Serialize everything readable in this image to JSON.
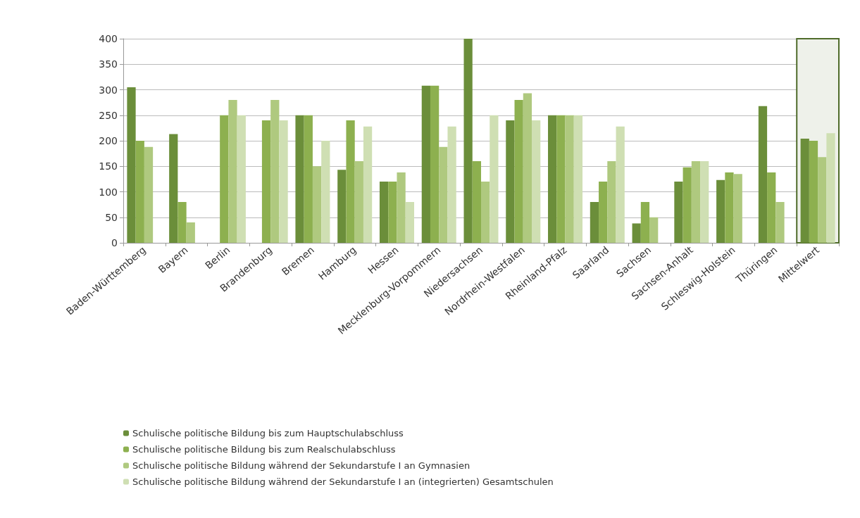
{
  "chart_data": {
    "type": "bar",
    "categories": [
      "Baden-Württemberg",
      "Bayern",
      "Berlin",
      "Brandenburg",
      "Bremen",
      "Hamburg",
      "Hessen",
      "Mecklenburg-Vorpommern",
      "Niedersachsen",
      "Nordrhein-Westfalen",
      "Rheinland-Pfalz",
      "Saarland",
      "Sachsen",
      "Sachsen-Anhalt",
      "Schleswig-Holstein",
      "Thüringen",
      "Mittelwert"
    ],
    "series": [
      {
        "name": "Schulische politische Bildung bis zum Hauptschulabschluss",
        "color": "#6b8e3a",
        "values": [
          305,
          213,
          null,
          null,
          250,
          143,
          120,
          308,
          400,
          240,
          250,
          80,
          38,
          120,
          123,
          268,
          204
        ]
      },
      {
        "name": "Schulische politische Bildung bis zum Realschulabschluss",
        "color": "#8db04f",
        "values": [
          200,
          80,
          250,
          240,
          250,
          240,
          120,
          308,
          160,
          280,
          250,
          120,
          80,
          148,
          138,
          138,
          200
        ]
      },
      {
        "name": "Schulische politische Bildung während der Sekundarstufe I an Gymnasien",
        "color": "#afc97f",
        "values": [
          188,
          40,
          280,
          280,
          150,
          160,
          138,
          188,
          120,
          293,
          250,
          160,
          50,
          160,
          135,
          80,
          168
        ]
      },
      {
        "name": "Schulische politische Bildung während der Sekundarstufe I an (integrierten) Gesamtschulen",
        "color": "#cfdfb3",
        "values": [
          null,
          null,
          250,
          240,
          200,
          228,
          80,
          228,
          250,
          240,
          250,
          228,
          null,
          160,
          null,
          null,
          215
        ]
      }
    ],
    "bands": [
      {
        "axis": "x",
        "from": "Mittelwert",
        "to": "Mittelwert",
        "color": "#eef1ea"
      }
    ],
    "ylim": [
      0,
      400
    ],
    "yticks": [
      0,
      50,
      100,
      150,
      200,
      250,
      300,
      350,
      400
    ],
    "grid": "y",
    "legend": "bottom"
  }
}
